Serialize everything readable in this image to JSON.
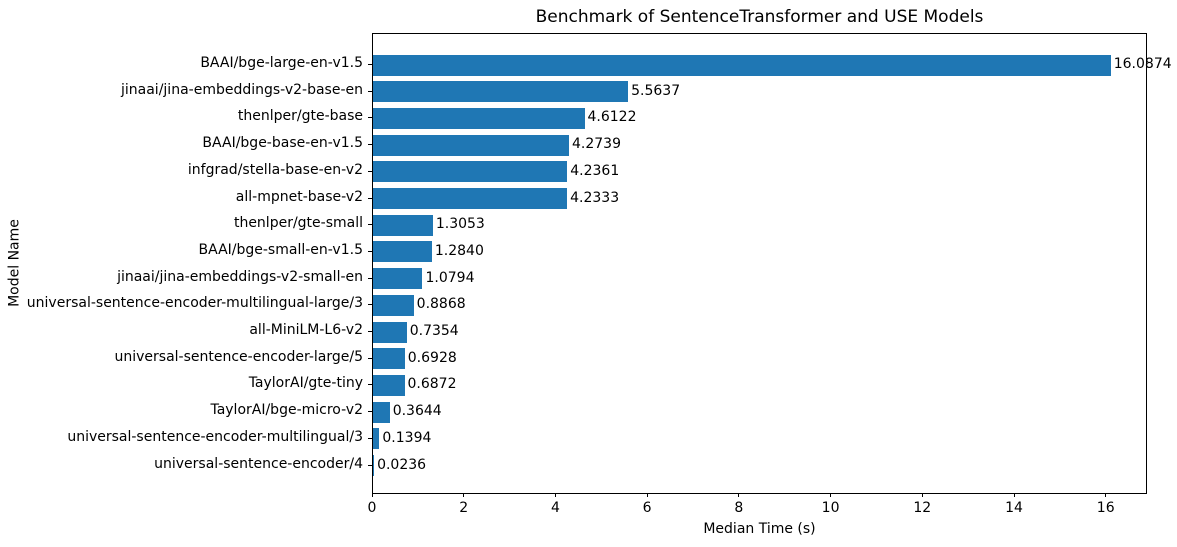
{
  "chart_data": {
    "type": "bar",
    "orientation": "horizontal",
    "title": "Benchmark of SentenceTransformer and USE Models",
    "xlabel": "Median Time (s)",
    "ylabel": "Model Name",
    "categories": [
      "BAAI/bge-large-en-v1.5",
      "jinaai/jina-embeddings-v2-base-en",
      "thenlper/gte-base",
      "BAAI/bge-base-en-v1.5",
      "infgrad/stella-base-en-v2",
      "all-mpnet-base-v2",
      "thenlper/gte-small",
      "BAAI/bge-small-en-v1.5",
      "jinaai/jina-embeddings-v2-small-en",
      "universal-sentence-encoder-multilingual-large/3",
      "all-MiniLM-L6-v2",
      "universal-sentence-encoder-large/5",
      "TaylorAI/gte-tiny",
      "TaylorAI/bge-micro-v2",
      "universal-sentence-encoder-multilingual/3",
      "universal-sentence-encoder/4"
    ],
    "values": [
      16.0874,
      5.5637,
      4.6122,
      4.2739,
      4.2361,
      4.2333,
      1.3053,
      1.284,
      1.0794,
      0.8868,
      0.7354,
      0.6928,
      0.6872,
      0.3644,
      0.1394,
      0.0236
    ],
    "value_labels": [
      "16.0874",
      "5.5637",
      "4.6122",
      "4.2739",
      "4.2361",
      "4.2333",
      "1.3053",
      "1.2840",
      "1.0794",
      "0.8868",
      "0.7354",
      "0.6928",
      "0.6872",
      "0.3644",
      "0.1394",
      "0.0236"
    ],
    "xticks": [
      0,
      2,
      4,
      6,
      8,
      10,
      12,
      14,
      16
    ],
    "xlim": [
      0,
      16.9
    ],
    "bar_color": "#1f77b4",
    "grid": false,
    "legend": null
  }
}
